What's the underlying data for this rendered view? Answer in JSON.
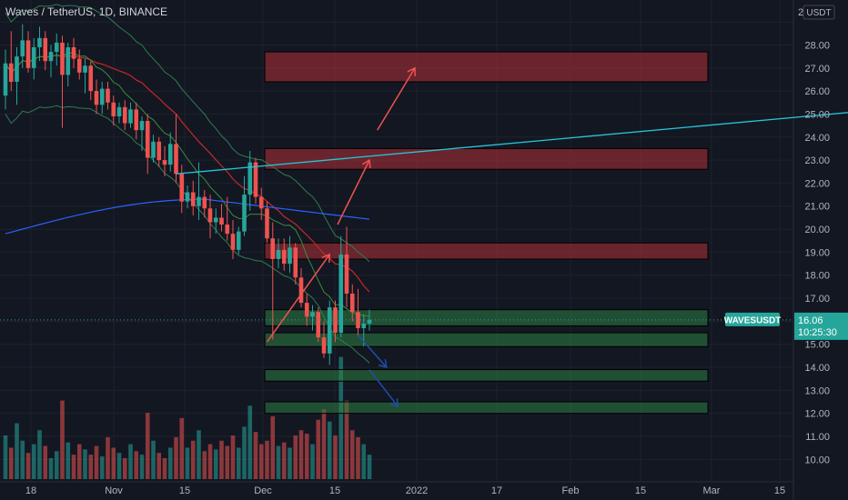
{
  "header": {
    "symbol_line": "Waves / TetherUS, 1D, BINANCE"
  },
  "price_axis": {
    "currency": "USDT",
    "top_label": "2"
  },
  "price_tag": {
    "symbol": "WAVESUSDT",
    "price": "16.06",
    "countdown": "10:25:30",
    "color": "#26a69a"
  },
  "colors": {
    "background": "#131722",
    "grid": "#1e222d",
    "text": "#b2b5be",
    "bull": "#26a69a",
    "bear": "#ef5350",
    "resistance_zone": "#b22f36",
    "support_zone": "#2e7d42",
    "trendline": "#26c6da",
    "ma_red": "#c62828",
    "ma_blue": "#2962ff",
    "bollinger": "#2e7d4f",
    "arrow_up": "#ef5350",
    "arrow_down": "#1e4fa8"
  },
  "chart_data": {
    "type": "candlestick",
    "title": "Waves / TetherUS, 1D, BINANCE",
    "x_ticks": [
      "18",
      "Nov",
      "15",
      "Dec",
      "15",
      "2022",
      "17",
      "Feb",
      "15",
      "Mar",
      "15"
    ],
    "y_ticks": [
      "10.00",
      "11.00",
      "12.00",
      "13.00",
      "14.00",
      "15.00",
      "16.00",
      "17.00",
      "18.00",
      "19.00",
      "20.00",
      "21.00",
      "22.00",
      "23.00",
      "24.00",
      "25.00",
      "26.00",
      "27.00",
      "28.00"
    ],
    "ylim": [
      9.5,
      29.4
    ],
    "last_price": 16.06,
    "candles": [
      [
        25.8,
        27.8,
        25.2,
        27.2
      ],
      [
        27.2,
        28.6,
        26.0,
        26.4
      ],
      [
        26.4,
        27.9,
        25.4,
        27.5
      ],
      [
        27.5,
        28.9,
        27.0,
        28.2
      ],
      [
        28.2,
        28.6,
        26.8,
        27.0
      ],
      [
        27.0,
        28.3,
        26.5,
        27.9
      ],
      [
        27.9,
        28.8,
        27.3,
        28.3
      ],
      [
        28.3,
        28.6,
        26.9,
        27.3
      ],
      [
        27.3,
        28.0,
        26.6,
        27.7
      ],
      [
        27.7,
        28.5,
        27.1,
        28.1
      ],
      [
        28.1,
        28.4,
        24.4,
        26.7
      ],
      [
        26.7,
        28.1,
        26.2,
        27.9
      ],
      [
        27.9,
        28.3,
        27.0,
        27.4
      ],
      [
        27.4,
        27.8,
        26.5,
        26.8
      ],
      [
        26.8,
        27.4,
        25.9,
        27.1
      ],
      [
        27.1,
        27.3,
        25.6,
        26.0
      ],
      [
        26.0,
        26.5,
        25.0,
        25.4
      ],
      [
        25.4,
        26.4,
        25.0,
        26.1
      ],
      [
        26.1,
        26.4,
        25.2,
        25.5
      ],
      [
        25.5,
        25.8,
        24.5,
        24.9
      ],
      [
        24.9,
        25.5,
        24.6,
        25.3
      ],
      [
        25.3,
        25.6,
        24.3,
        24.6
      ],
      [
        24.6,
        25.5,
        24.4,
        25.2
      ],
      [
        25.2,
        25.5,
        23.9,
        24.3
      ],
      [
        24.3,
        24.9,
        23.4,
        24.7
      ],
      [
        24.7,
        25.0,
        22.4,
        23.1
      ],
      [
        23.1,
        24.1,
        22.9,
        23.8
      ],
      [
        23.8,
        24.0,
        22.7,
        23.0
      ],
      [
        23.0,
        23.6,
        22.3,
        22.8
      ],
      [
        22.8,
        24.2,
        22.5,
        23.7
      ],
      [
        23.7,
        25.0,
        22.0,
        22.4
      ],
      [
        22.4,
        22.8,
        20.7,
        21.2
      ],
      [
        21.2,
        21.9,
        20.9,
        21.6
      ],
      [
        21.6,
        22.1,
        20.6,
        21.0
      ],
      [
        21.0,
        22.9,
        20.4,
        21.4
      ],
      [
        21.4,
        21.7,
        20.5,
        20.9
      ],
      [
        20.9,
        21.5,
        19.6,
        20.3
      ],
      [
        20.3,
        20.9,
        19.8,
        20.5
      ],
      [
        20.5,
        21.1,
        19.9,
        20.2
      ],
      [
        20.2,
        21.4,
        19.5,
        19.8
      ],
      [
        19.8,
        20.4,
        18.7,
        19.1
      ],
      [
        19.1,
        20.1,
        18.9,
        19.9
      ],
      [
        19.9,
        22.3,
        19.7,
        21.5
      ],
      [
        21.5,
        23.4,
        20.8,
        22.9
      ],
      [
        22.9,
        23.1,
        21.1,
        21.4
      ],
      [
        21.4,
        21.8,
        20.4,
        20.9
      ],
      [
        20.9,
        21.2,
        19.4,
        19.6
      ],
      [
        19.6,
        20.3,
        15.2,
        18.7
      ],
      [
        18.7,
        19.6,
        18.3,
        19.1
      ],
      [
        19.1,
        19.6,
        18.2,
        18.5
      ],
      [
        18.5,
        19.7,
        18.1,
        19.2
      ],
      [
        19.2,
        19.4,
        17.6,
        17.9
      ],
      [
        17.9,
        18.3,
        16.6,
        16.8
      ],
      [
        16.8,
        17.2,
        15.8,
        16.2
      ],
      [
        16.2,
        16.7,
        15.6,
        16.4
      ],
      [
        16.4,
        16.6,
        15.1,
        15.3
      ],
      [
        15.3,
        16.0,
        14.4,
        14.6
      ],
      [
        14.6,
        16.9,
        14.1,
        16.6
      ],
      [
        16.6,
        16.9,
        15.1,
        15.5
      ],
      [
        15.5,
        19.7,
        15.3,
        18.9
      ],
      [
        18.9,
        20.1,
        16.6,
        17.2
      ],
      [
        17.2,
        17.6,
        16.0,
        16.4
      ],
      [
        16.4,
        17.4,
        15.4,
        15.7
      ],
      [
        15.7,
        16.3,
        14.9,
        15.9
      ],
      [
        15.9,
        16.5,
        15.6,
        16.06
      ]
    ],
    "volumes": [
      0.25,
      0.18,
      0.32,
      0.22,
      0.15,
      0.2,
      0.28,
      0.19,
      0.12,
      0.16,
      0.45,
      0.21,
      0.14,
      0.2,
      0.17,
      0.14,
      0.19,
      0.13,
      0.24,
      0.18,
      0.15,
      0.12,
      0.2,
      0.16,
      0.14,
      0.38,
      0.22,
      0.15,
      0.12,
      0.18,
      0.24,
      0.35,
      0.18,
      0.22,
      0.28,
      0.16,
      0.2,
      0.17,
      0.22,
      0.19,
      0.25,
      0.18,
      0.3,
      0.42,
      0.27,
      0.2,
      0.22,
      0.36,
      0.19,
      0.21,
      0.18,
      0.25,
      0.28,
      0.26,
      0.2,
      0.34,
      0.4,
      0.33,
      0.25,
      0.7,
      0.45,
      0.28,
      0.24,
      0.2,
      0.14
    ],
    "resistance_zones": [
      [
        26.4,
        27.7
      ],
      [
        22.6,
        23.5
      ],
      [
        18.7,
        19.4
      ]
    ],
    "support_zones": [
      [
        15.8,
        16.5
      ],
      [
        14.9,
        15.5
      ],
      [
        13.4,
        13.9
      ],
      [
        12.0,
        12.5
      ]
    ],
    "trendline": [
      [
        30,
        22.4
      ],
      [
        500,
        33.0
      ]
    ],
    "projection_up": [
      [
        46,
        15.1
      ],
      [
        57,
        18.9
      ],
      [
        64,
        23.0
      ],
      [
        72,
        27.0
      ]
    ],
    "projection_down": [
      [
        [
          62,
          15.4
        ],
        [
          67,
          14.0
        ]
      ],
      [
        [
          64,
          13.9
        ],
        [
          69,
          12.3
        ]
      ]
    ]
  }
}
